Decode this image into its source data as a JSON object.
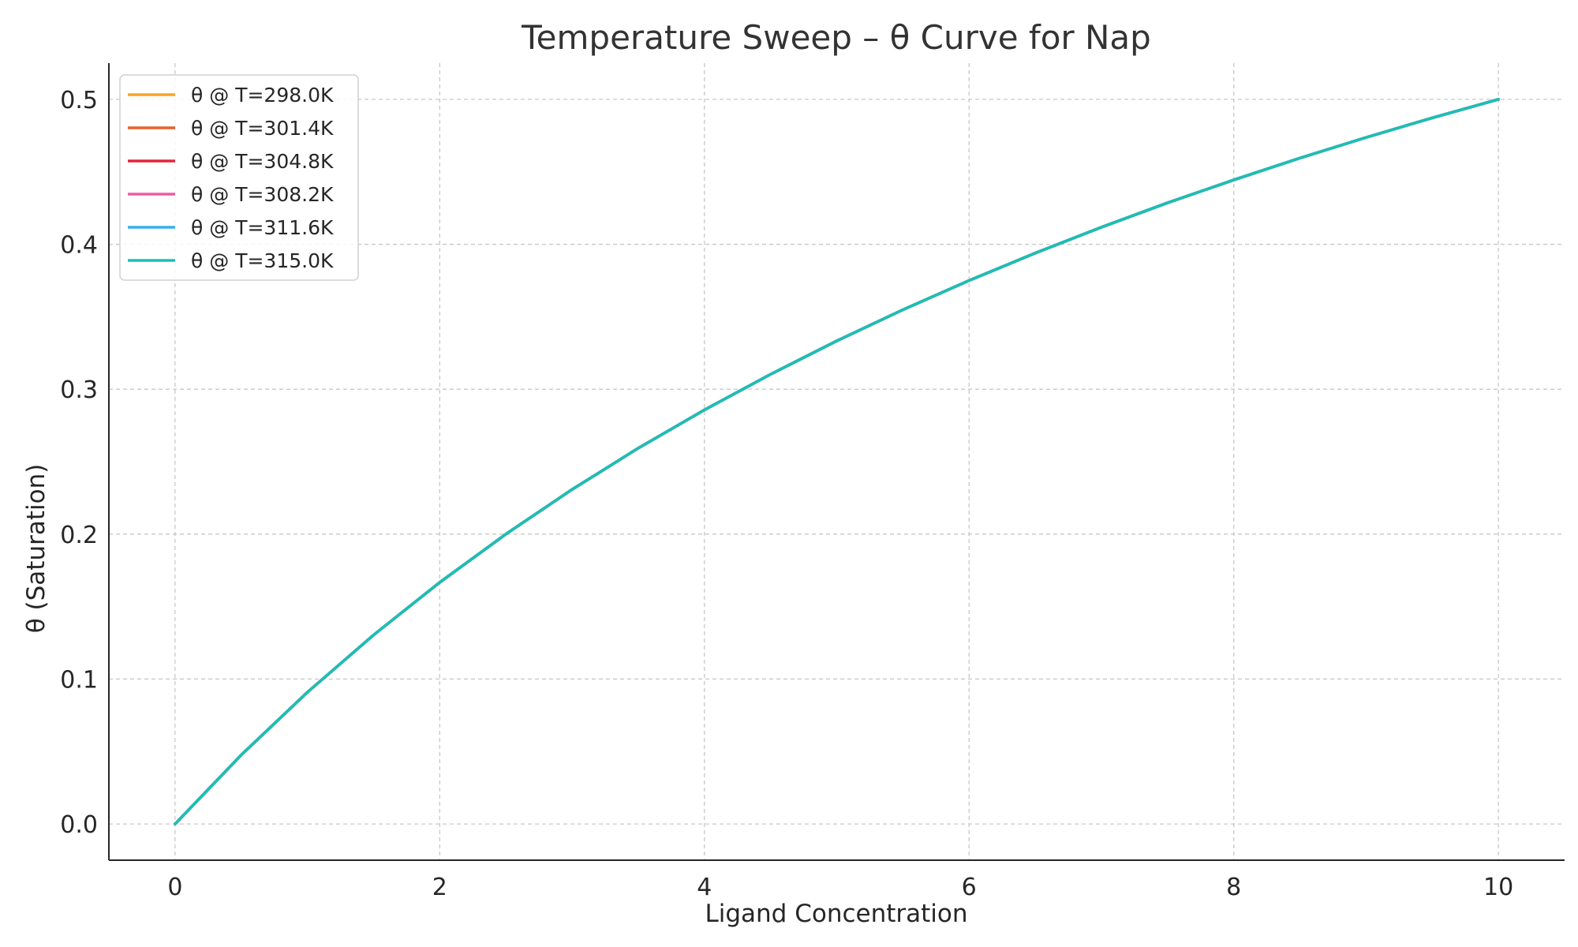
{
  "chart_data": {
    "type": "line",
    "title": "Temperature Sweep – θ Curve for Nap",
    "xlabel": "Ligand Concentration",
    "ylabel": "θ (Saturation)",
    "xlim": [
      -0.5,
      10.5
    ],
    "ylim": [
      -0.025,
      0.525
    ],
    "xticks": [
      0,
      2,
      4,
      6,
      8,
      10
    ],
    "xtick_labels": [
      "0",
      "2",
      "4",
      "6",
      "8",
      "10"
    ],
    "yticks": [
      0.0,
      0.1,
      0.2,
      0.3,
      0.4,
      0.5
    ],
    "ytick_labels": [
      "0.0",
      "0.1",
      "0.2",
      "0.3",
      "0.4",
      "0.5"
    ],
    "grid": true,
    "legend_position": "top-left",
    "x": [
      0,
      0.5,
      1,
      1.5,
      2,
      2.5,
      3,
      3.5,
      4,
      4.5,
      5,
      5.5,
      6,
      6.5,
      7,
      7.5,
      8,
      8.5,
      9,
      9.5,
      10
    ],
    "series": [
      {
        "name": "θ @ T=298.0K",
        "color": "#f5a623",
        "values": [
          0,
          0.0476,
          0.0909,
          0.1304,
          0.1667,
          0.2,
          0.2308,
          0.2593,
          0.2857,
          0.3103,
          0.3333,
          0.3548,
          0.375,
          0.3939,
          0.4118,
          0.4286,
          0.4444,
          0.4595,
          0.4737,
          0.4872,
          0.5
        ]
      },
      {
        "name": "θ @ T=301.4K",
        "color": "#e8602c",
        "values": [
          0,
          0.0476,
          0.0909,
          0.1304,
          0.1667,
          0.2,
          0.2308,
          0.2593,
          0.2857,
          0.3103,
          0.3333,
          0.3548,
          0.375,
          0.3939,
          0.4118,
          0.4286,
          0.4444,
          0.4595,
          0.4737,
          0.4872,
          0.5
        ]
      },
      {
        "name": "θ @ T=304.8K",
        "color": "#e0263f",
        "values": [
          0,
          0.0476,
          0.0909,
          0.1304,
          0.1667,
          0.2,
          0.2308,
          0.2593,
          0.2857,
          0.3103,
          0.3333,
          0.3548,
          0.375,
          0.3939,
          0.4118,
          0.4286,
          0.4444,
          0.4595,
          0.4737,
          0.4872,
          0.5
        ]
      },
      {
        "name": "θ @ T=308.2K",
        "color": "#ef5aa6",
        "values": [
          0,
          0.0476,
          0.0909,
          0.1304,
          0.1667,
          0.2,
          0.2308,
          0.2593,
          0.2857,
          0.3103,
          0.3333,
          0.3548,
          0.375,
          0.3939,
          0.4118,
          0.4286,
          0.4444,
          0.4595,
          0.4737,
          0.4872,
          0.5
        ]
      },
      {
        "name": "θ @ T=311.6K",
        "color": "#3aaeea",
        "values": [
          0,
          0.0476,
          0.0909,
          0.1304,
          0.1667,
          0.2,
          0.2308,
          0.2593,
          0.2857,
          0.3103,
          0.3333,
          0.3548,
          0.375,
          0.3939,
          0.4118,
          0.4286,
          0.4444,
          0.4595,
          0.4737,
          0.4872,
          0.5
        ]
      },
      {
        "name": "θ @ T=315.0K",
        "color": "#1bbfb5",
        "values": [
          0,
          0.0476,
          0.0909,
          0.1304,
          0.1667,
          0.2,
          0.2308,
          0.2593,
          0.2857,
          0.3103,
          0.3333,
          0.3548,
          0.375,
          0.3939,
          0.4118,
          0.4286,
          0.4444,
          0.4595,
          0.4737,
          0.4872,
          0.5
        ]
      }
    ]
  }
}
